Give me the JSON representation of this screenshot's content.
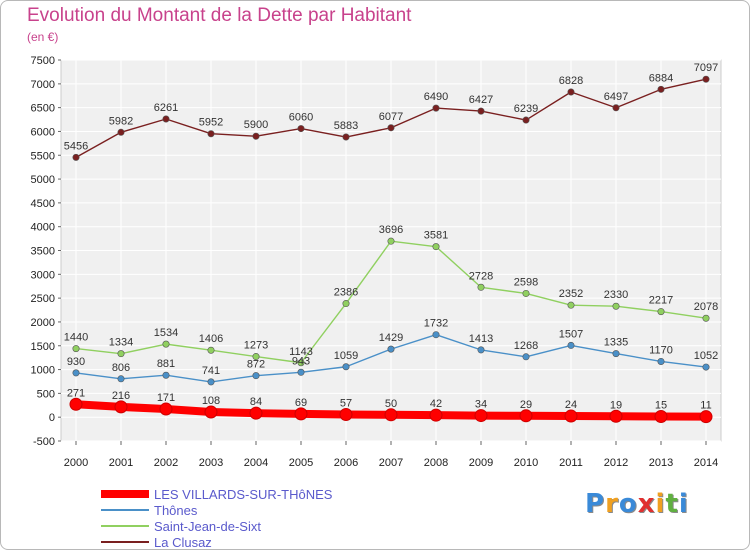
{
  "chart_data": {
    "type": "line",
    "title": "Evolution du Montant de la Dette par Habitant",
    "subtitle": "(en €)",
    "x": [
      "2000",
      "2001",
      "2002",
      "2003",
      "2004",
      "2005",
      "2006",
      "2007",
      "2008",
      "2009",
      "2010",
      "2011",
      "2012",
      "2013",
      "2014"
    ],
    "yticks": [
      "-500",
      "0",
      "500",
      "1000",
      "1500",
      "2000",
      "2500",
      "3000",
      "3500",
      "4000",
      "4500",
      "5000",
      "5500",
      "6000",
      "6500",
      "7000",
      "7500"
    ],
    "ylim": [
      -500,
      7500
    ],
    "grid": true,
    "legend_position": "bottom-left",
    "series": [
      {
        "name": "LES VILLARDS-SUR-THôNES",
        "color": "#ff0000",
        "values": [
          271,
          216,
          171,
          108,
          84,
          69,
          57,
          50,
          42,
          34,
          29,
          24,
          19,
          15,
          11
        ]
      },
      {
        "name": "Thônes",
        "color": "#4a90c8",
        "values": [
          930,
          806,
          881,
          741,
          872,
          943,
          1059,
          1429,
          1732,
          1413,
          1268,
          1507,
          1335,
          1170,
          1052
        ]
      },
      {
        "name": "Saint-Jean-de-Sixt",
        "color": "#90d060",
        "values": [
          1440,
          1334,
          1534,
          1406,
          1273,
          1143,
          2386,
          3696,
          3581,
          2728,
          2598,
          2352,
          2330,
          2217,
          2078
        ]
      },
      {
        "name": "La Clusaz",
        "color": "#7a2020",
        "values": [
          5456,
          5982,
          6261,
          5952,
          5900,
          6060,
          5883,
          6077,
          6490,
          6427,
          6239,
          6828,
          6497,
          6884,
          7097
        ]
      }
    ]
  },
  "branding": {
    "logo_letters": [
      "P",
      "r",
      "o",
      "x",
      "i",
      "t",
      "i"
    ],
    "logo_colors": [
      "#3a8ad8",
      "#f0a020",
      "#3a8ad8",
      "#e03030",
      "#f0a020",
      "#60b040",
      "#3a8ad8"
    ]
  }
}
